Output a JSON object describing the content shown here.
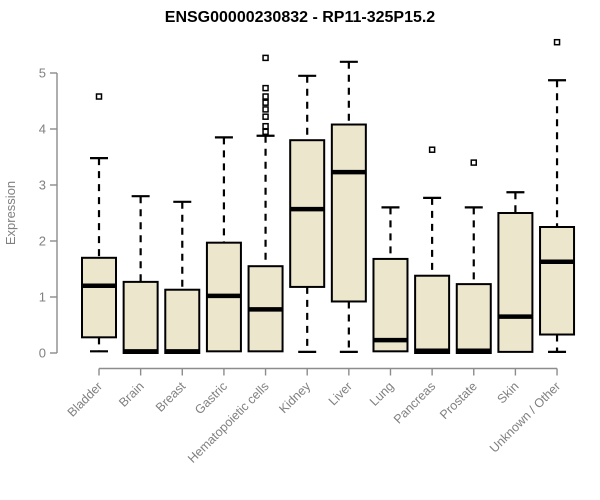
{
  "page": {
    "background": "#ffffff"
  },
  "chart_data": {
    "type": "boxplot",
    "title": "ENSG00000230832 - RP11-325P15.2",
    "xlabel": "",
    "ylabel": "Expression",
    "ylim": [
      0,
      5
    ],
    "yticks": [
      0,
      1,
      2,
      3,
      4,
      5
    ],
    "grid": false,
    "legend": "none",
    "categories": [
      "Bladder",
      "Brain",
      "Breast",
      "Gastric",
      "Hematopoietic cells",
      "Kidney",
      "Liver",
      "Lung",
      "Pancreas",
      "Prostate",
      "Skin",
      "Unknown / Other"
    ],
    "boxes": [
      {
        "label": "Bladder",
        "whisker_low": 0.03,
        "q1": 0.28,
        "median": 1.2,
        "q3": 1.7,
        "whisker_high": 3.48,
        "outliers": [
          4.58
        ]
      },
      {
        "label": "Brain",
        "whisker_low": 0.0,
        "q1": 0.0,
        "median": 0.03,
        "q3": 1.27,
        "whisker_high": 2.8,
        "outliers": []
      },
      {
        "label": "Breast",
        "whisker_low": 0.0,
        "q1": 0.0,
        "median": 0.03,
        "q3": 1.13,
        "whisker_high": 2.7,
        "outliers": []
      },
      {
        "label": "Gastric",
        "whisker_low": 0.0,
        "q1": 0.03,
        "median": 1.02,
        "q3": 1.97,
        "whisker_high": 3.85,
        "outliers": []
      },
      {
        "label": "Hematopoietic cells",
        "whisker_low": 0.0,
        "q1": 0.03,
        "median": 0.78,
        "q3": 1.55,
        "whisker_high": 3.88,
        "outliers": [
          3.95,
          4.05,
          4.22,
          4.35,
          4.47,
          4.58,
          4.73,
          5.27
        ]
      },
      {
        "label": "Kidney",
        "whisker_low": 0.02,
        "q1": 1.18,
        "median": 2.57,
        "q3": 3.8,
        "whisker_high": 4.95,
        "outliers": []
      },
      {
        "label": "Liver",
        "whisker_low": 0.02,
        "q1": 0.92,
        "median": 3.23,
        "q3": 4.08,
        "whisker_high": 5.2,
        "outliers": []
      },
      {
        "label": "Lung",
        "whisker_low": 0.0,
        "q1": 0.03,
        "median": 0.23,
        "q3": 1.68,
        "whisker_high": 2.6,
        "outliers": []
      },
      {
        "label": "Pancreas",
        "whisker_low": 0.0,
        "q1": 0.0,
        "median": 0.04,
        "q3": 1.38,
        "whisker_high": 2.77,
        "outliers": [
          3.63
        ]
      },
      {
        "label": "Prostate",
        "whisker_low": 0.0,
        "q1": 0.0,
        "median": 0.04,
        "q3": 1.23,
        "whisker_high": 2.6,
        "outliers": [
          3.4
        ]
      },
      {
        "label": "Skin",
        "whisker_low": 0.0,
        "q1": 0.02,
        "median": 0.65,
        "q3": 2.5,
        "whisker_high": 2.87,
        "outliers": []
      },
      {
        "label": "Unknown / Other",
        "whisker_low": 0.02,
        "q1": 0.33,
        "median": 1.63,
        "q3": 2.25,
        "whisker_high": 4.87,
        "outliers": [
          5.55
        ]
      }
    ],
    "colors": {
      "box_fill": "#ece6cd",
      "box_stroke": "#000000",
      "median": "#000000",
      "whisker": "#000000",
      "outlier_fill": "#ffffff",
      "outlier_stroke": "#000000",
      "axis": "#8c8c8c",
      "tick_text": "#808080",
      "title_text": "#000000"
    }
  }
}
